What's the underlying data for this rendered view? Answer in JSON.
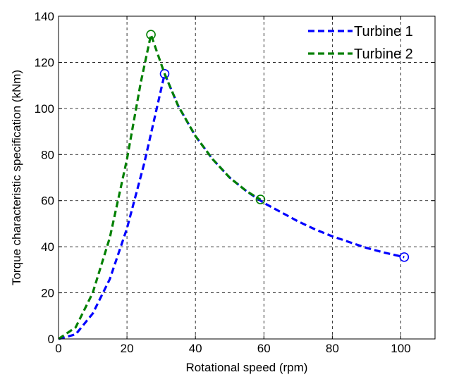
{
  "chart_data": {
    "type": "line",
    "title": "",
    "xlabel": "Rotational speed (rpm)",
    "ylabel": "Torque characteristic specification (kNm)",
    "xlim": [
      0,
      110
    ],
    "ylim": [
      0,
      140
    ],
    "xticks": [
      0,
      20,
      40,
      60,
      80,
      100
    ],
    "yticks": [
      0,
      20,
      40,
      60,
      80,
      100,
      120,
      140
    ],
    "xtick_labels": [
      "0",
      "20",
      "40",
      "60",
      "80",
      "100"
    ],
    "ytick_labels": [
      "0",
      "20",
      "40",
      "60",
      "80",
      "100",
      "120",
      "140"
    ],
    "grid": true,
    "legend_position": "top-right",
    "series": [
      {
        "name": "Turbine 1",
        "color": "#0000ff",
        "line_style": "dashed",
        "x": [
          0,
          5,
          10,
          15,
          20,
          25,
          31,
          35,
          40,
          45,
          50,
          55,
          60,
          65,
          70,
          75,
          80,
          85,
          90,
          95,
          101
        ],
        "y": [
          0,
          2,
          11,
          26,
          48,
          76,
          115,
          101,
          88,
          78,
          70,
          64,
          59,
          55,
          51,
          47.5,
          44.5,
          42,
          39.5,
          37.5,
          35.5
        ],
        "markers": [
          {
            "x": 31,
            "y": 115
          },
          {
            "x": 101,
            "y": 35.5
          }
        ]
      },
      {
        "name": "Turbine 2",
        "color": "#008000",
        "line_style": "dashed",
        "x": [
          0,
          5,
          10,
          15,
          20,
          24,
          27,
          31,
          35,
          40,
          45,
          50,
          55,
          59
        ],
        "y": [
          0,
          5,
          20,
          44,
          78,
          111,
          132,
          115,
          101,
          88,
          78,
          70,
          64,
          60.5
        ],
        "markers": [
          {
            "x": 27,
            "y": 132
          },
          {
            "x": 59,
            "y": 60.5
          }
        ]
      }
    ]
  }
}
